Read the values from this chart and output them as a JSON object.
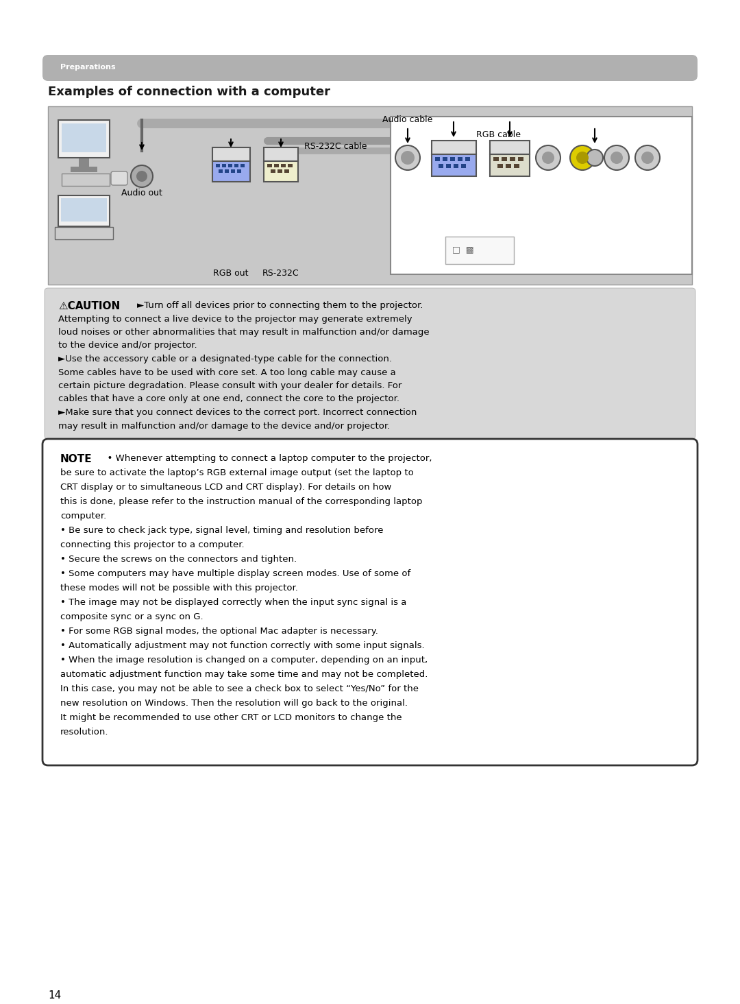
{
  "page_bg": "#ffffff",
  "preparations_text": "Preparations",
  "section_title": "Examples of connection with a computer",
  "caution_title": "⚠CAUTION",
  "caution_lines": [
    "►Turn off all devices prior to connecting them to the projector.",
    "Attempting to connect a live device to the projector may generate extremely",
    "loud noises or other abnormalities that may result in malfunction and/or damage",
    "to the device and/or projector.",
    "►Use the accessory cable or a designated-type cable for the connection.",
    "Some cables have to be used with core set. A too long cable may cause a",
    "certain picture degradation. Please consult with your dealer for details. For",
    "cables that have a core only at one end, connect the core to the projector.",
    "►Make sure that you connect devices to the correct port. Incorrect connection",
    "may result in malfunction and/or damage to the device and/or projector."
  ],
  "note_title": "NOTE",
  "note_lines": [
    "  • Whenever attempting to connect a laptop computer to the projector,",
    "be sure to activate the laptop’s RGB external image output (set the laptop to",
    "CRT display or to simultaneous LCD and CRT display). For details on how",
    "this is done, please refer to the instruction manual of the corresponding laptop",
    "computer.",
    "• Be sure to check jack type, signal level, timing and resolution before",
    "connecting this projector to a computer.",
    "• Secure the screws on the connectors and tighten.",
    "• Some computers may have multiple display screen modes. Use of some of",
    "these modes will not be possible with this projector.",
    "• The image may not be displayed correctly when the input sync signal is a",
    "composite sync or a sync on G.",
    "• For some RGB signal modes, the optional Mac adapter is necessary.",
    "• Automatically adjustment may not function correctly with some input signals.",
    "• When the image resolution is changed on a computer, depending on an input,",
    "automatic adjustment function may take some time and may not be completed.",
    "In this case, you may not be able to see a check box to select “Yes/No” for the",
    "new resolution on Windows. Then the resolution will go back to the original.",
    "It might be recommended to use other CRT or LCD monitors to change the",
    "resolution."
  ],
  "page_number": "14",
  "diagram_label_audio_cable": "Audio cable",
  "diagram_label_rs232c": "RS-232C cable",
  "diagram_label_rgb": "RGB cable",
  "diagram_label_audio_out": "Audio out",
  "diagram_label_rgb_out": "RGB out",
  "diagram_label_rs232c_port": "RS-232C"
}
